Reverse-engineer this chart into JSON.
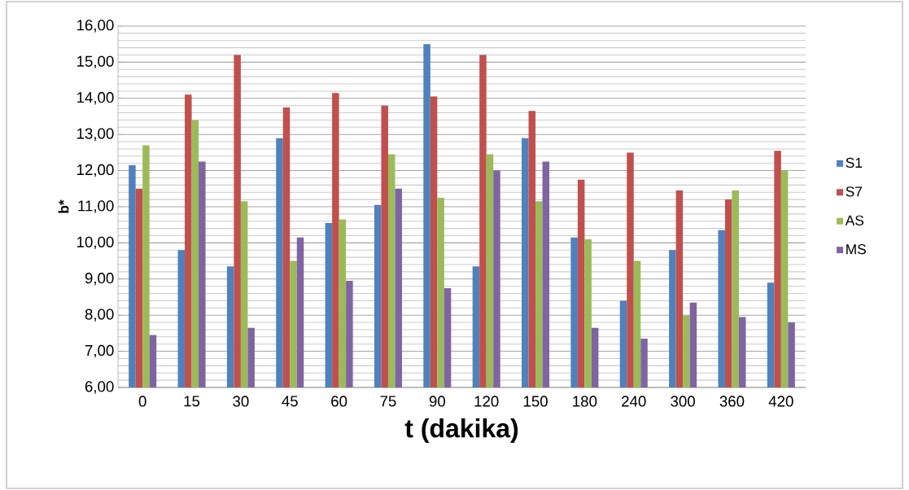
{
  "chart_data": {
    "type": "bar",
    "xlabel": "t (dakika)",
    "ylabel": "b*",
    "categories": [
      "0",
      "15",
      "30",
      "45",
      "60",
      "75",
      "90",
      "120",
      "150",
      "180",
      "240",
      "300",
      "360",
      "420"
    ],
    "series": [
      {
        "name": "S1",
        "color": "#4f81bd",
        "values": [
          12.15,
          9.8,
          9.35,
          12.9,
          10.55,
          11.05,
          15.5,
          9.35,
          12.9,
          10.15,
          8.4,
          9.8,
          10.35,
          8.9
        ]
      },
      {
        "name": "S7",
        "color": "#c0504d",
        "values": [
          11.5,
          14.1,
          15.2,
          13.75,
          14.15,
          13.8,
          14.05,
          15.2,
          13.65,
          11.75,
          12.5,
          11.45,
          11.2,
          12.55
        ]
      },
      {
        "name": "AS",
        "color": "#9bbb59",
        "values": [
          12.7,
          13.4,
          11.15,
          9.5,
          10.65,
          12.45,
          11.25,
          12.45,
          11.15,
          10.1,
          9.5,
          8.0,
          11.45,
          12.0
        ]
      },
      {
        "name": "MS",
        "color": "#8064a2",
        "values": [
          7.45,
          12.25,
          7.65,
          10.15,
          8.95,
          11.5,
          8.75,
          12.0,
          12.25,
          7.65,
          7.35,
          8.35,
          7.95,
          7.8
        ]
      }
    ],
    "ylim": [
      6,
      16
    ],
    "yticks": [
      {
        "value": 6,
        "label": "6,00"
      },
      {
        "value": 7,
        "label": "7,00"
      },
      {
        "value": 8,
        "label": "8,00"
      },
      {
        "value": 9,
        "label": "9,00"
      },
      {
        "value": 10,
        "label": "10,00"
      },
      {
        "value": 11,
        "label": "11,00"
      },
      {
        "value": 12,
        "label": "12,00"
      },
      {
        "value": 13,
        "label": "13,00"
      },
      {
        "value": 14,
        "label": "14,00"
      },
      {
        "value": 15,
        "label": "15,00"
      },
      {
        "value": 16,
        "label": "16,00"
      }
    ],
    "grid": "y",
    "legend": "right"
  }
}
